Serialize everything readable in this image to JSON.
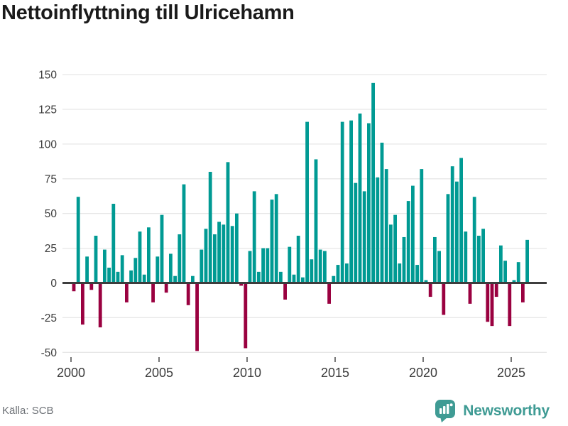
{
  "title": "Nettoinflyttning till Ulricehamn",
  "source": "Källa: SCB",
  "logo": {
    "text": "Newsworthy",
    "icon": "newsworthy-pin-barchart-icon"
  },
  "colors": {
    "positive_bar": "#009a93",
    "negative_bar": "#9a0140",
    "axis_line": "#3d3d3d",
    "gridline": "#e7e7e7",
    "tick_label": "#3b3b3b",
    "title_text": "#1a1a1a",
    "source_text": "#6e7277",
    "logo_teal": "#3f9b94",
    "background": "#ffffff"
  },
  "chart_data": {
    "type": "bar",
    "title": "Nettoinflyttning till Ulricehamn",
    "frequency": "quarterly",
    "series_start": "2000-Q1",
    "series_end": "2025-Q4",
    "x_tick_labels": [
      "2000",
      "2005",
      "2010",
      "2015",
      "2020",
      "2025"
    ],
    "y_ticks": [
      150,
      125,
      100,
      75,
      50,
      25,
      0,
      -25,
      -50
    ],
    "ylim": [
      -58,
      160
    ],
    "grid": "horizontal",
    "legend": "none",
    "values": [
      -6,
      62,
      -30,
      19,
      -5,
      34,
      -32,
      24,
      11,
      57,
      8,
      20,
      -14,
      9,
      18,
      37,
      6,
      40,
      -14,
      19,
      49,
      -7,
      21,
      5,
      35,
      71,
      -16,
      5,
      -49,
      24,
      39,
      80,
      35,
      44,
      42,
      87,
      41,
      50,
      -2,
      -47,
      23,
      66,
      8,
      25,
      25,
      60,
      64,
      8,
      -12,
      26,
      6,
      34,
      4,
      116,
      17,
      89,
      24,
      23,
      -15,
      5,
      13,
      116,
      14,
      117,
      72,
      122,
      66,
      115,
      144,
      76,
      101,
      82,
      42,
      49,
      14,
      33,
      59,
      70,
      13,
      82,
      2,
      -10,
      33,
      23,
      -23,
      64,
      84,
      73,
      90,
      37,
      -15,
      62,
      34,
      39,
      -28,
      -31,
      -10,
      27,
      16,
      -31,
      2,
      15,
      -14,
      31
    ]
  }
}
